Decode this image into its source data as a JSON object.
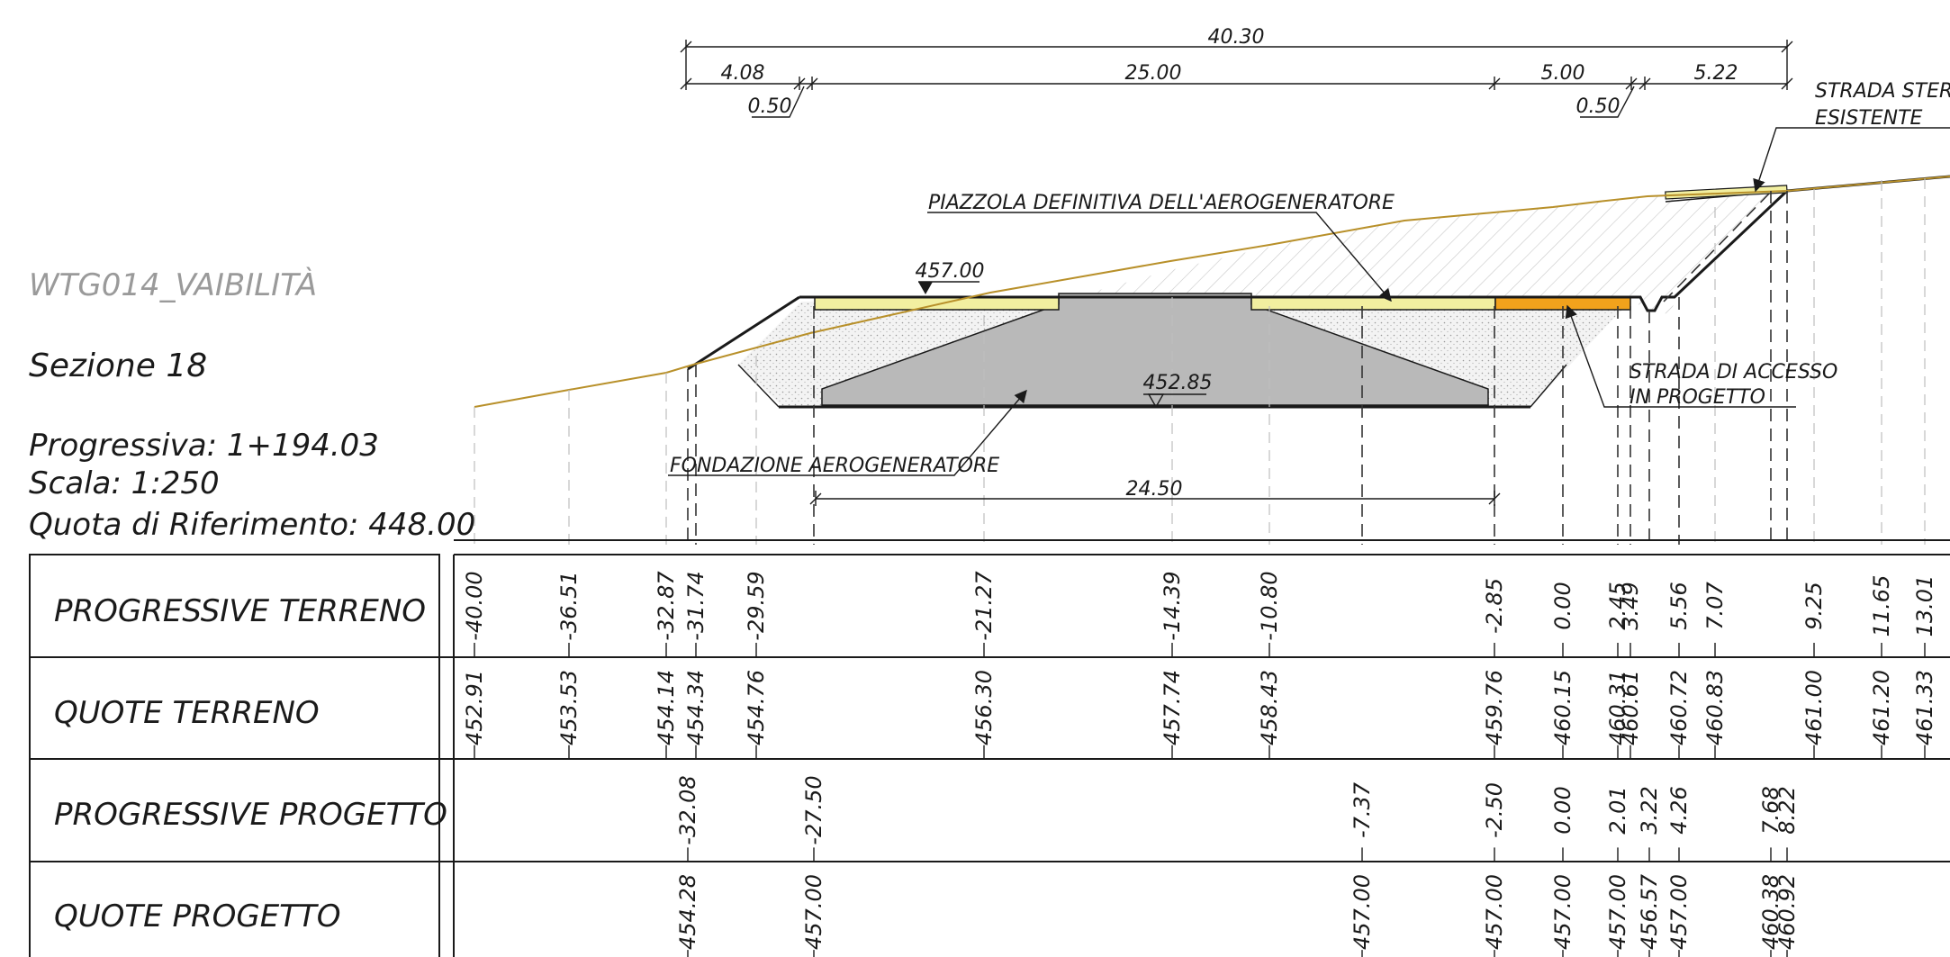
{
  "section": {
    "name": "WTG014_VAIBILITÀ",
    "sezione": "Sezione 18",
    "progressiva": "Progressiva: 1+194.03",
    "scala": "Scala: 1:250",
    "quota_riferimento": "Quota di Riferimento: 448.00"
  },
  "dimensions": {
    "total": "40.30",
    "d1": "4.08",
    "d2": "0.50",
    "d3": "25.00",
    "d4": "5.00",
    "d5": "0.50",
    "d6": "5.22",
    "foundation_width": "24.50"
  },
  "labels": {
    "piazzola": "PIAZZOLA DEFINITIVA DELL'AEROGENERATORE",
    "strada_sterrata_1": "STRADA STERRATA",
    "strada_sterrata_2": "ESISTENTE",
    "strada_accesso_1": "STRADA DI ACCESSO",
    "strada_accesso_2": "IN PROGETTO",
    "fondazione": "FONDAZIONE AEROGENERATORE",
    "elev_piazzola": "457.00",
    "elev_fondazione": "452.85"
  },
  "table": {
    "row_titles": [
      "PROGRESSIVE TERRENO",
      "QUOTE TERRENO",
      "PROGRESSIVE PROGETTO",
      "QUOTE PROGETTO"
    ],
    "progressive_terreno": [
      "-40.00",
      "-36.51",
      "-32.87",
      "-31.74",
      "-29.59",
      "-21.27",
      "-14.39",
      "-10.80",
      "-2.85",
      "0.00",
      "2.45",
      "3.49",
      "5.56",
      "7.07",
      "9.25",
      "11.65",
      "13.01"
    ],
    "quote_terreno": [
      "452.91",
      "453.53",
      "454.14",
      "454.34",
      "454.76",
      "456.30",
      "457.74",
      "458.43",
      "459.76",
      "460.15",
      "460.31",
      "460.61",
      "460.72",
      "460.83",
      "461.00",
      "461.20",
      "461.33"
    ],
    "progressive_progetto": [
      "-32.08",
      "-27.50",
      "-7.37",
      "-2.50",
      "0.00",
      "2.01",
      "3.22",
      "4.26",
      "7.68",
      "8.22"
    ],
    "quote_progetto": [
      "454.28",
      "457.00",
      "457.00",
      "457.00",
      "457.00",
      "457.00",
      "456.57",
      "457.00",
      "460.38",
      "460.92"
    ]
  },
  "colors": {
    "terrain": "#b8902a",
    "pavement": "#f2efa0",
    "access_road": "#f2a21c",
    "foundation": "#b9b9b9",
    "fill_gravel": "#ececec"
  }
}
